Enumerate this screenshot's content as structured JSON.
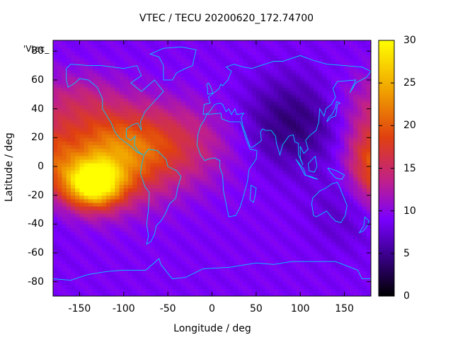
{
  "chart_data": {
    "type": "heatmap",
    "title": "VTEC / TECU 20200620_172.74700",
    "xlabel": "Longitude / deg",
    "ylabel": "Latitude / deg",
    "key_label": "'Vtec_",
    "xlim": [
      -180,
      180
    ],
    "ylim": [
      -90,
      87.5
    ],
    "x_ticks": [
      -150,
      -100,
      -50,
      0,
      50,
      100,
      150
    ],
    "y_ticks": [
      -80,
      -60,
      -40,
      -20,
      0,
      20,
      40,
      60,
      80
    ],
    "colorbar": {
      "range": [
        0,
        30
      ],
      "ticks": [
        0,
        5,
        10,
        15,
        20,
        25,
        30
      ],
      "palette": [
        "#000000",
        "#3a008c",
        "#7a00ff",
        "#c0208a",
        "#e04010",
        "#f0a000",
        "#ffff00"
      ]
    },
    "coastline_color": "#00ccff",
    "features": [
      {
        "kind": "peak",
        "lon": -135,
        "lat": -12,
        "vtec": 28
      },
      {
        "kind": "ridge",
        "lon": -120,
        "lat": 5,
        "vtec": 22
      },
      {
        "kind": "band",
        "lon": -60,
        "lat": 15,
        "vtec": 16
      },
      {
        "kind": "trough",
        "lon": 90,
        "lat": 30,
        "vtec": 4
      },
      {
        "kind": "background",
        "vtec": 9
      }
    ]
  }
}
